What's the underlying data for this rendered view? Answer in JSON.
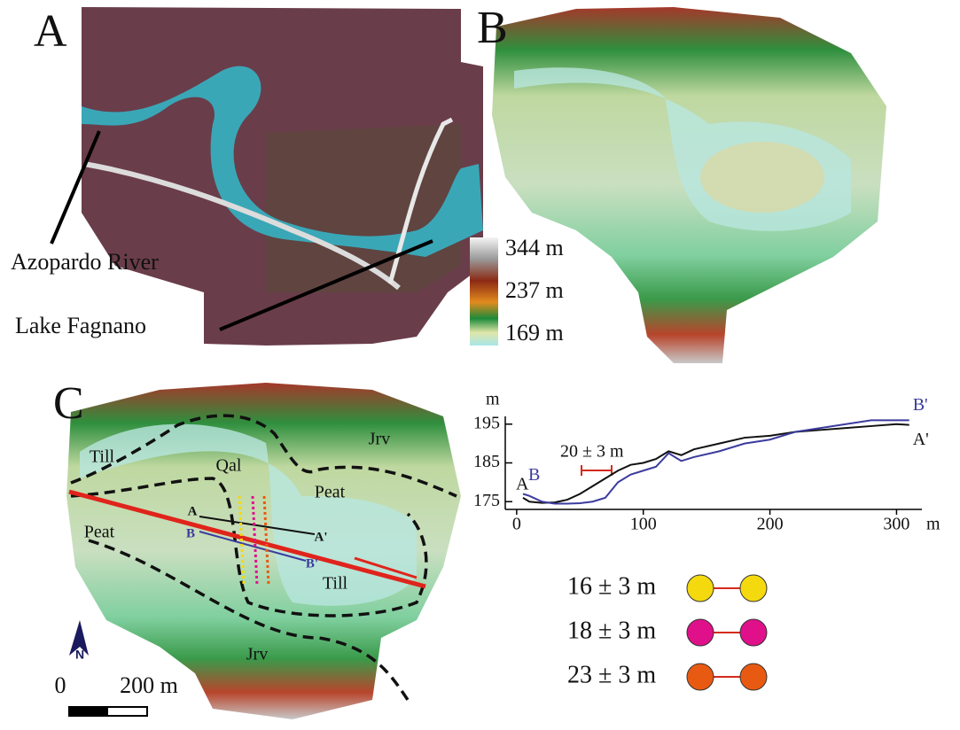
{
  "panels": {
    "a": "A",
    "b": "B",
    "c": "C"
  },
  "map_a": {
    "river_label": "Azopardo River",
    "lake_label": "Lake Fagnano"
  },
  "colorbar": {
    "labels": [
      "344 m",
      "237 m",
      "169 m"
    ]
  },
  "map_c": {
    "units": [
      "Till",
      "Qal",
      "Peat",
      "Jrv",
      "Peat",
      "Till",
      "Jrv"
    ],
    "profile_labels": [
      "A",
      "A'",
      "B",
      "B'"
    ],
    "scale_labels": [
      "0",
      "200 m"
    ],
    "north": "N"
  },
  "chart_data": {
    "type": "line",
    "y_label": "m",
    "x_label": "m",
    "annotation": "20 ± 3 m",
    "x": [
      5,
      10,
      20,
      30,
      40,
      50,
      60,
      70,
      80,
      90,
      100,
      110,
      120,
      130,
      140,
      160,
      180,
      200,
      220,
      240,
      260,
      280,
      300,
      310
    ],
    "series": [
      {
        "color": "#111111",
        "start_label": "A",
        "end_label": "A'",
        "values": [
          176,
          175,
          174.7,
          174.8,
          175.5,
          177,
          179,
          181,
          183,
          184.5,
          185,
          186,
          188,
          187,
          188.5,
          190,
          191.5,
          192,
          193,
          193.5,
          194,
          194.5,
          195,
          194.8
        ]
      },
      {
        "color": "#3b3b9e",
        "start_label": "B",
        "end_label": "B'",
        "values": [
          177,
          176.5,
          175,
          174.5,
          174.5,
          174.6,
          175,
          176,
          180,
          182,
          183,
          184,
          187.5,
          185.5,
          186.5,
          188,
          190,
          191,
          193,
          194,
          195,
          196,
          196,
          196
        ]
      }
    ],
    "xlim": [
      -9,
      320
    ],
    "ylim": [
      173,
      197
    ],
    "xticks": [
      0,
      100,
      200,
      300
    ],
    "yticks": [
      175,
      185,
      195
    ]
  },
  "offsets": [
    {
      "label": "16 ± 3 m",
      "color": "#f5d90f"
    },
    {
      "label": "18 ± 3 m",
      "color": "#e0108a"
    },
    {
      "label": "23 ± 3 m",
      "color": "#e85a12"
    }
  ]
}
